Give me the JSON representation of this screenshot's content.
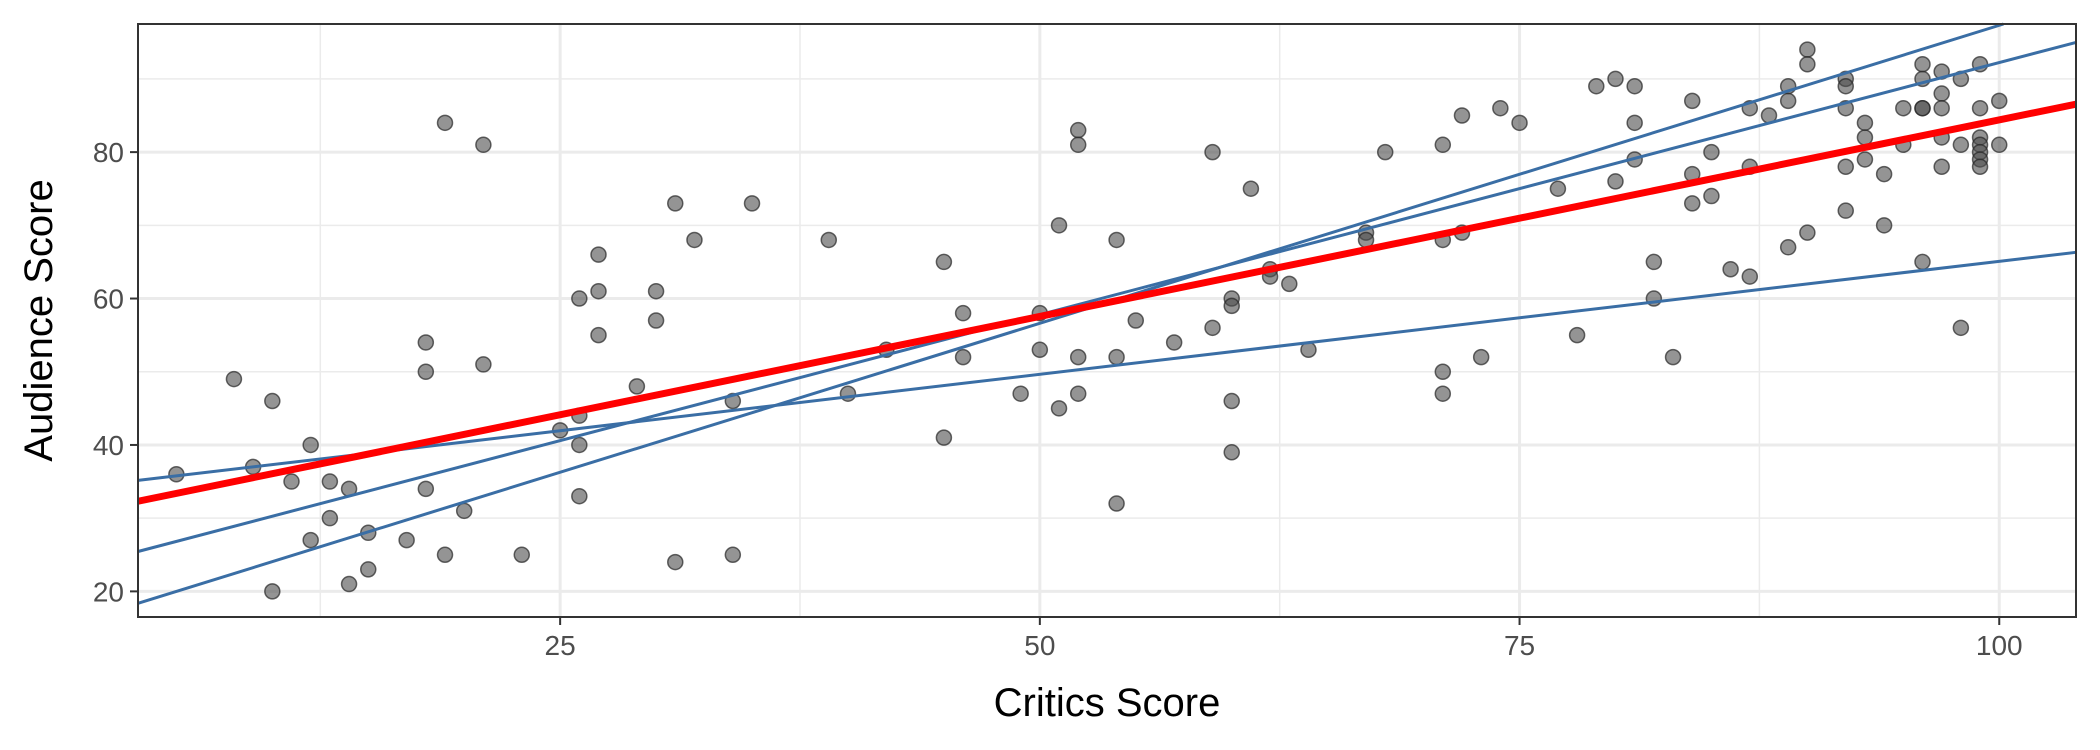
{
  "chart_data": {
    "type": "scatter",
    "title": "",
    "xlabel": "Critics Score",
    "ylabel": "Audience Score",
    "xlim": [
      3,
      104
    ],
    "ylim": [
      16.5,
      97.5
    ],
    "x_ticks": [
      25,
      50,
      75,
      100
    ],
    "y_ticks": [
      20,
      40,
      60,
      80
    ],
    "x_tick_labels": [
      "25",
      "50",
      "75",
      "100"
    ],
    "y_tick_labels": [
      "20",
      "40",
      "60",
      "80"
    ],
    "grid": true,
    "legend": "none",
    "colors": {
      "points": "#4d4d4d",
      "fit_line": "#ff0000",
      "sample_lines": "#3a6ea5",
      "grid": "#ebebeb",
      "border": "#333333"
    },
    "points": [
      [
        5,
        36
      ],
      [
        8,
        49
      ],
      [
        9,
        37
      ],
      [
        10,
        46
      ],
      [
        10,
        20
      ],
      [
        11,
        35
      ],
      [
        12,
        40
      ],
      [
        12,
        27
      ],
      [
        13,
        35
      ],
      [
        13,
        30
      ],
      [
        14,
        34
      ],
      [
        14,
        21
      ],
      [
        15,
        28
      ],
      [
        15,
        23
      ],
      [
        17,
        27
      ],
      [
        18,
        54
      ],
      [
        18,
        50
      ],
      [
        18,
        34
      ],
      [
        19,
        84
      ],
      [
        19,
        25
      ],
      [
        20,
        31
      ],
      [
        21,
        81
      ],
      [
        21,
        51
      ],
      [
        23,
        25
      ],
      [
        25,
        42
      ],
      [
        26,
        44
      ],
      [
        26,
        60
      ],
      [
        26,
        40
      ],
      [
        26,
        33
      ],
      [
        27,
        66
      ],
      [
        27,
        61
      ],
      [
        27,
        55
      ],
      [
        29,
        48
      ],
      [
        30,
        61
      ],
      [
        30,
        57
      ],
      [
        31,
        73
      ],
      [
        31,
        24
      ],
      [
        32,
        68
      ],
      [
        34,
        46
      ],
      [
        34,
        25
      ],
      [
        35,
        73
      ],
      [
        39,
        68
      ],
      [
        40,
        47
      ],
      [
        42,
        53
      ],
      [
        45,
        65
      ],
      [
        45,
        41
      ],
      [
        46,
        58
      ],
      [
        46,
        52
      ],
      [
        49,
        47
      ],
      [
        50,
        58
      ],
      [
        50,
        53
      ],
      [
        51,
        70
      ],
      [
        51,
        45
      ],
      [
        52,
        83
      ],
      [
        52,
        81
      ],
      [
        52,
        52
      ],
      [
        52,
        47
      ],
      [
        54,
        68
      ],
      [
        54,
        52
      ],
      [
        54,
        32
      ],
      [
        55,
        57
      ],
      [
        57,
        54
      ],
      [
        59,
        80
      ],
      [
        59,
        56
      ],
      [
        60,
        60
      ],
      [
        60,
        59
      ],
      [
        60,
        46
      ],
      [
        60,
        39
      ],
      [
        61,
        75
      ],
      [
        62,
        64
      ],
      [
        62,
        63
      ],
      [
        63,
        62
      ],
      [
        64,
        53
      ],
      [
        67,
        69
      ],
      [
        67,
        68
      ],
      [
        68,
        80
      ],
      [
        71,
        81
      ],
      [
        71,
        68
      ],
      [
        71,
        50
      ],
      [
        71,
        47
      ],
      [
        72,
        85
      ],
      [
        72,
        69
      ],
      [
        73,
        52
      ],
      [
        74,
        86
      ],
      [
        75,
        84
      ],
      [
        77,
        75
      ],
      [
        78,
        55
      ],
      [
        79,
        89
      ],
      [
        80,
        90
      ],
      [
        80,
        76
      ],
      [
        81,
        89
      ],
      [
        81,
        84
      ],
      [
        81,
        79
      ],
      [
        82,
        65
      ],
      [
        82,
        60
      ],
      [
        83,
        52
      ],
      [
        84,
        87
      ],
      [
        84,
        77
      ],
      [
        84,
        73
      ],
      [
        85,
        80
      ],
      [
        85,
        74
      ],
      [
        86,
        64
      ],
      [
        87,
        86
      ],
      [
        87,
        78
      ],
      [
        87,
        63
      ],
      [
        88,
        85
      ],
      [
        89,
        89
      ],
      [
        89,
        87
      ],
      [
        89,
        67
      ],
      [
        90,
        94
      ],
      [
        90,
        92
      ],
      [
        90,
        69
      ],
      [
        92,
        90
      ],
      [
        92,
        89
      ],
      [
        92,
        86
      ],
      [
        92,
        78
      ],
      [
        92,
        72
      ],
      [
        93,
        84
      ],
      [
        93,
        82
      ],
      [
        93,
        79
      ],
      [
        94,
        77
      ],
      [
        94,
        70
      ],
      [
        95,
        86
      ],
      [
        95,
        81
      ],
      [
        96,
        92
      ],
      [
        96,
        90
      ],
      [
        96,
        86
      ],
      [
        96,
        86
      ],
      [
        96,
        65
      ],
      [
        97,
        91
      ],
      [
        97,
        88
      ],
      [
        97,
        86
      ],
      [
        97,
        82
      ],
      [
        97,
        78
      ],
      [
        98,
        90
      ],
      [
        98,
        81
      ],
      [
        98,
        56
      ],
      [
        99,
        92
      ],
      [
        99,
        86
      ],
      [
        99,
        82
      ],
      [
        99,
        81
      ],
      [
        99,
        80
      ],
      [
        99,
        79
      ],
      [
        99,
        78
      ],
      [
        100,
        87
      ],
      [
        100,
        81
      ]
    ],
    "fit_line": {
      "intercept": 30.7,
      "slope": 0.537
    },
    "sample_lines": [
      {
        "intercept": 15.92,
        "slope": 0.814
      },
      {
        "intercept": 23.38,
        "slope": 0.6885
      },
      {
        "intercept": 34.23,
        "slope": 0.3085
      }
    ]
  }
}
